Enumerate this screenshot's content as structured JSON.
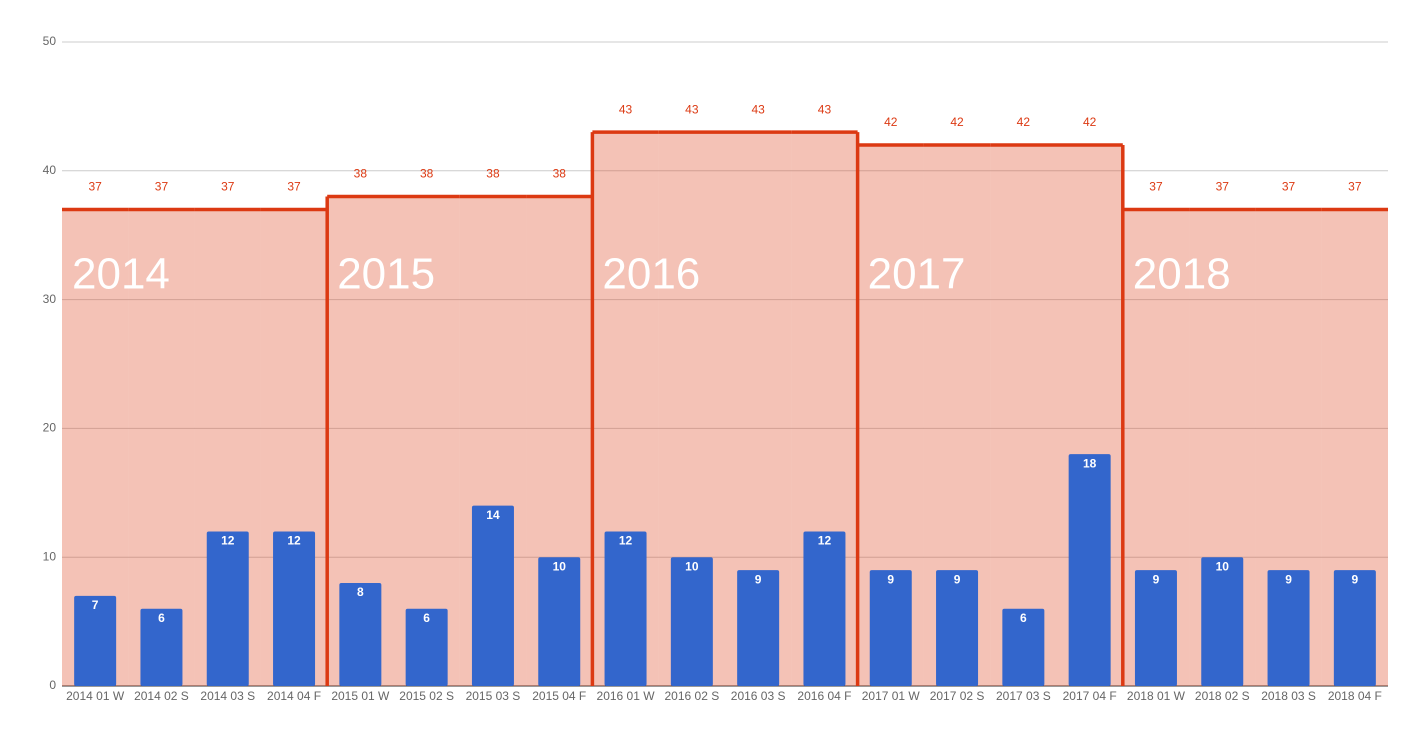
{
  "chart_data": {
    "type": "combo",
    "categories": [
      "2014 01 W",
      "2014 02 S",
      "2014 03 S",
      "2014 04 F",
      "2015 01 W",
      "2015 02 S",
      "2015 03 S",
      "2015 04 F",
      "2016 01 W",
      "2016 02 S",
      "2016 03 S",
      "2016 04 F",
      "2017 01 W",
      "2017 02 S",
      "2017 03 S",
      "2017 04 F",
      "2018 01 W",
      "2018 02 S",
      "2018 03 S",
      "2018 04 F"
    ],
    "series": [
      {
        "type": "bar",
        "color": "#3366cc",
        "values": [
          7,
          6,
          12,
          12,
          8,
          6,
          14,
          10,
          12,
          10,
          9,
          12,
          9,
          9,
          6,
          18,
          9,
          10,
          9,
          9
        ]
      },
      {
        "type": "steppedArea",
        "color": "#dc3912",
        "values": [
          37,
          37,
          37,
          37,
          38,
          38,
          38,
          38,
          43,
          43,
          43,
          43,
          42,
          42,
          42,
          42,
          37,
          37,
          37,
          37
        ]
      }
    ],
    "annotations": [
      "2014",
      "2015",
      "2016",
      "2017",
      "2018"
    ],
    "ylim": [
      0,
      50
    ],
    "yticks": [
      0,
      10,
      20,
      30,
      40,
      50
    ],
    "grid": true
  }
}
